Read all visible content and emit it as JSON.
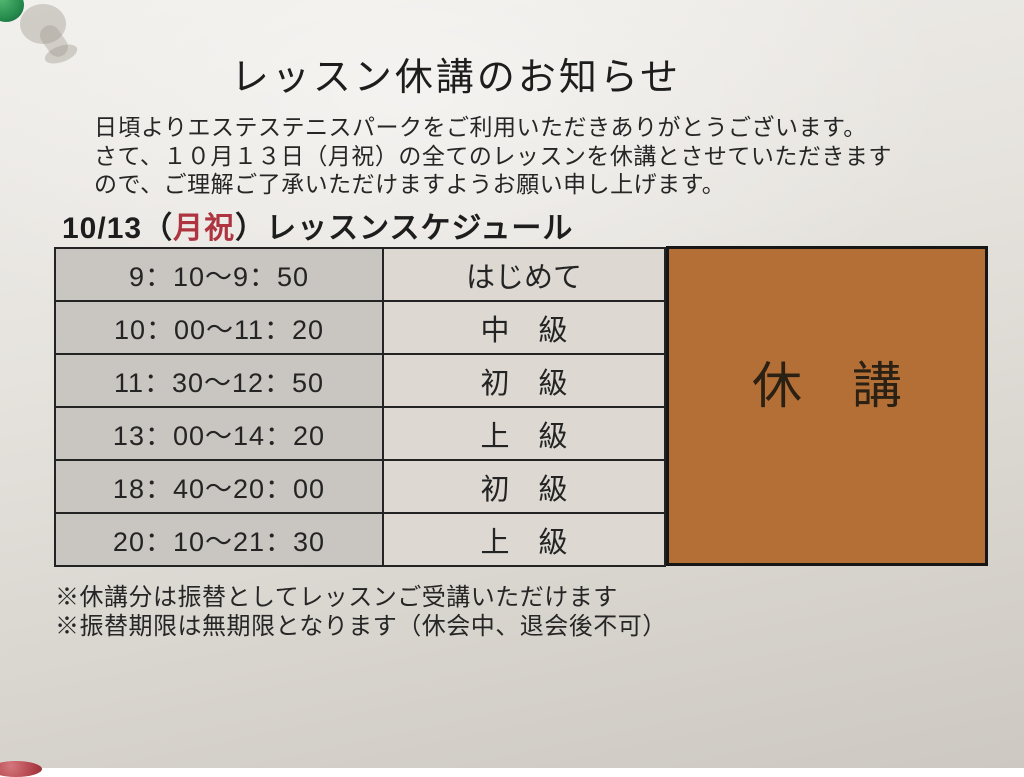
{
  "notice": {
    "title": "レッスン休講のお知らせ",
    "body_lines": [
      "日頃よりエステステニスパークをご利用いただきありがとうございます。",
      "さて、１０月１３日（月祝）の全てのレッスンを休講とさせていただきます",
      "ので、ご理解ご了承いただけますようお願い申し上げます。"
    ],
    "schedule_heading": {
      "prefix": "10/13（",
      "holiday": "月祝",
      "suffix": "）レッスンスケジュール"
    },
    "schedule": {
      "rows": [
        {
          "time": "9：10～9：50",
          "level": "はじめて"
        },
        {
          "time": "10：00～11：20",
          "level": "中　級"
        },
        {
          "time": "11：30～12：50",
          "level": "初　級"
        },
        {
          "time": "13：00～14：20",
          "level": "上　級"
        },
        {
          "time": "18：40～20：00",
          "level": "初　級"
        },
        {
          "time": "20：10～21：30",
          "level": "上　級"
        }
      ]
    },
    "cancelled_label": "休　講",
    "footnotes": [
      "※休講分は振替としてレッスンご受講いただけます",
      "※振替期限は無期限となります（休会中、退会後不可）"
    ],
    "colors": {
      "cancelled_box": "#b46f37",
      "holiday_red": "#ae3540",
      "time_cell": "#c9c5c0",
      "level_cell": "#ddd9d2",
      "paper": "#e6e3de"
    },
    "decorations": [
      "green-pushpin",
      "pushpin-shadow",
      "red-pushpin"
    ]
  }
}
